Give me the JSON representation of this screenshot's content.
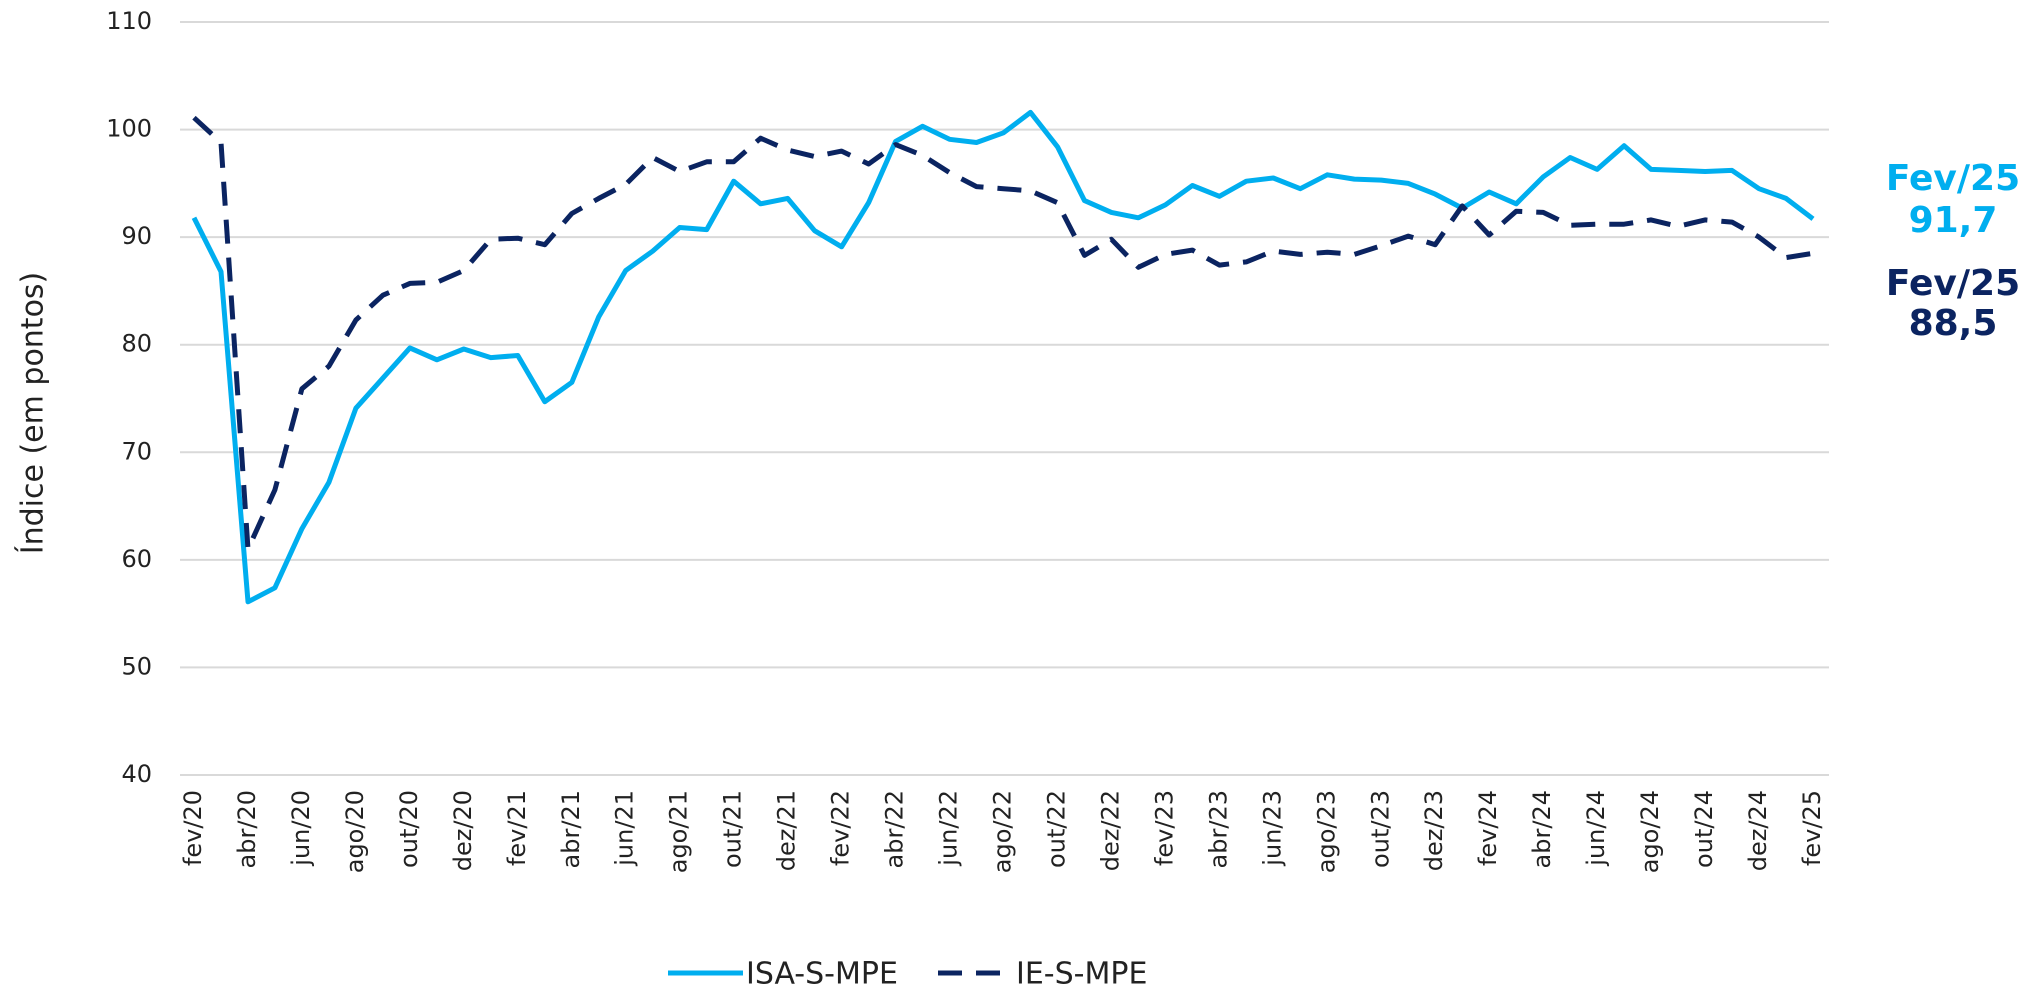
{
  "chart_data": {
    "type": "line",
    "y_label": "Índice (em pontos)",
    "categories": [
      "fev/20",
      null,
      "abr/20",
      null,
      "jun/20",
      null,
      "ago/20",
      null,
      "out/20",
      null,
      "dez/20",
      null,
      "fev/21",
      null,
      "abr/21",
      null,
      "jun/21",
      null,
      "ago/21",
      null,
      "out/21",
      null,
      "dez/21",
      null,
      "fev/22",
      null,
      "abr/22",
      null,
      "jun/22",
      null,
      "ago/22",
      null,
      "out/22",
      null,
      "dez/22",
      null,
      "fev/23",
      null,
      "abr/23",
      null,
      "jun/23",
      null,
      "ago/23",
      null,
      "out/23",
      null,
      "dez/23",
      null,
      "fev/24",
      null,
      "abr/24",
      null,
      "jun/24",
      null,
      "ago/24",
      null,
      "out/24",
      null,
      "dez/24",
      null,
      "fev/25"
    ],
    "series": [
      {
        "name": "ISA-S-MPE",
        "color": "#00aeef",
        "dash": false,
        "values": [
          91.8,
          86.8,
          56.1,
          57.4,
          62.9,
          67.2,
          74.1,
          76.9,
          79.7,
          78.6,
          79.6,
          78.8,
          79.0,
          74.7,
          76.5,
          82.6,
          86.9,
          88.7,
          90.9,
          90.7,
          95.2,
          93.1,
          93.6,
          90.6,
          89.1,
          93.2,
          98.9,
          100.3,
          99.1,
          98.8,
          99.7,
          101.6,
          98.4,
          93.4,
          92.3,
          91.8,
          93.0,
          94.8,
          93.8,
          95.2,
          95.5,
          94.5,
          95.8,
          95.4,
          95.3,
          95.0,
          94.0,
          92.7,
          94.2,
          93.1,
          95.6,
          97.4,
          96.3,
          98.5,
          96.3,
          96.2,
          96.1,
          96.2,
          94.5,
          93.6,
          91.7
        ]
      },
      {
        "name": "IE-S-MPE",
        "color": "#0b2461",
        "dash": true,
        "values": [
          101.1,
          98.8,
          61.0,
          66.5,
          75.9,
          78.0,
          82.3,
          84.6,
          85.7,
          85.8,
          86.9,
          89.8,
          89.9,
          89.3,
          92.2,
          93.6,
          94.9,
          97.4,
          96.1,
          97.0,
          97.0,
          99.2,
          98.1,
          97.5,
          98.0,
          96.8,
          98.6,
          97.6,
          96.0,
          94.7,
          94.5,
          94.3,
          93.2,
          88.3,
          89.8,
          87.2,
          88.4,
          88.8,
          87.4,
          87.7,
          88.7,
          88.4,
          88.6,
          88.4,
          89.2,
          90.1,
          89.3,
          92.9,
          90.2,
          92.4,
          92.3,
          91.1,
          91.2,
          91.2,
          91.6,
          91.0,
          91.6,
          91.4,
          90.0,
          88.1,
          88.5
        ]
      }
    ],
    "annotations": [
      {
        "text": "Fev/25",
        "color": "#00aeef"
      },
      {
        "text": "91,7",
        "color": "#00aeef"
      },
      {
        "text": "Fev/25",
        "color": "#0b2461"
      },
      {
        "text": "88,5",
        "color": "#0b2461"
      }
    ],
    "ylim": [
      40,
      110
    ],
    "yticks": [
      40,
      50,
      60,
      70,
      80,
      90,
      100,
      110
    ],
    "grid": true
  }
}
